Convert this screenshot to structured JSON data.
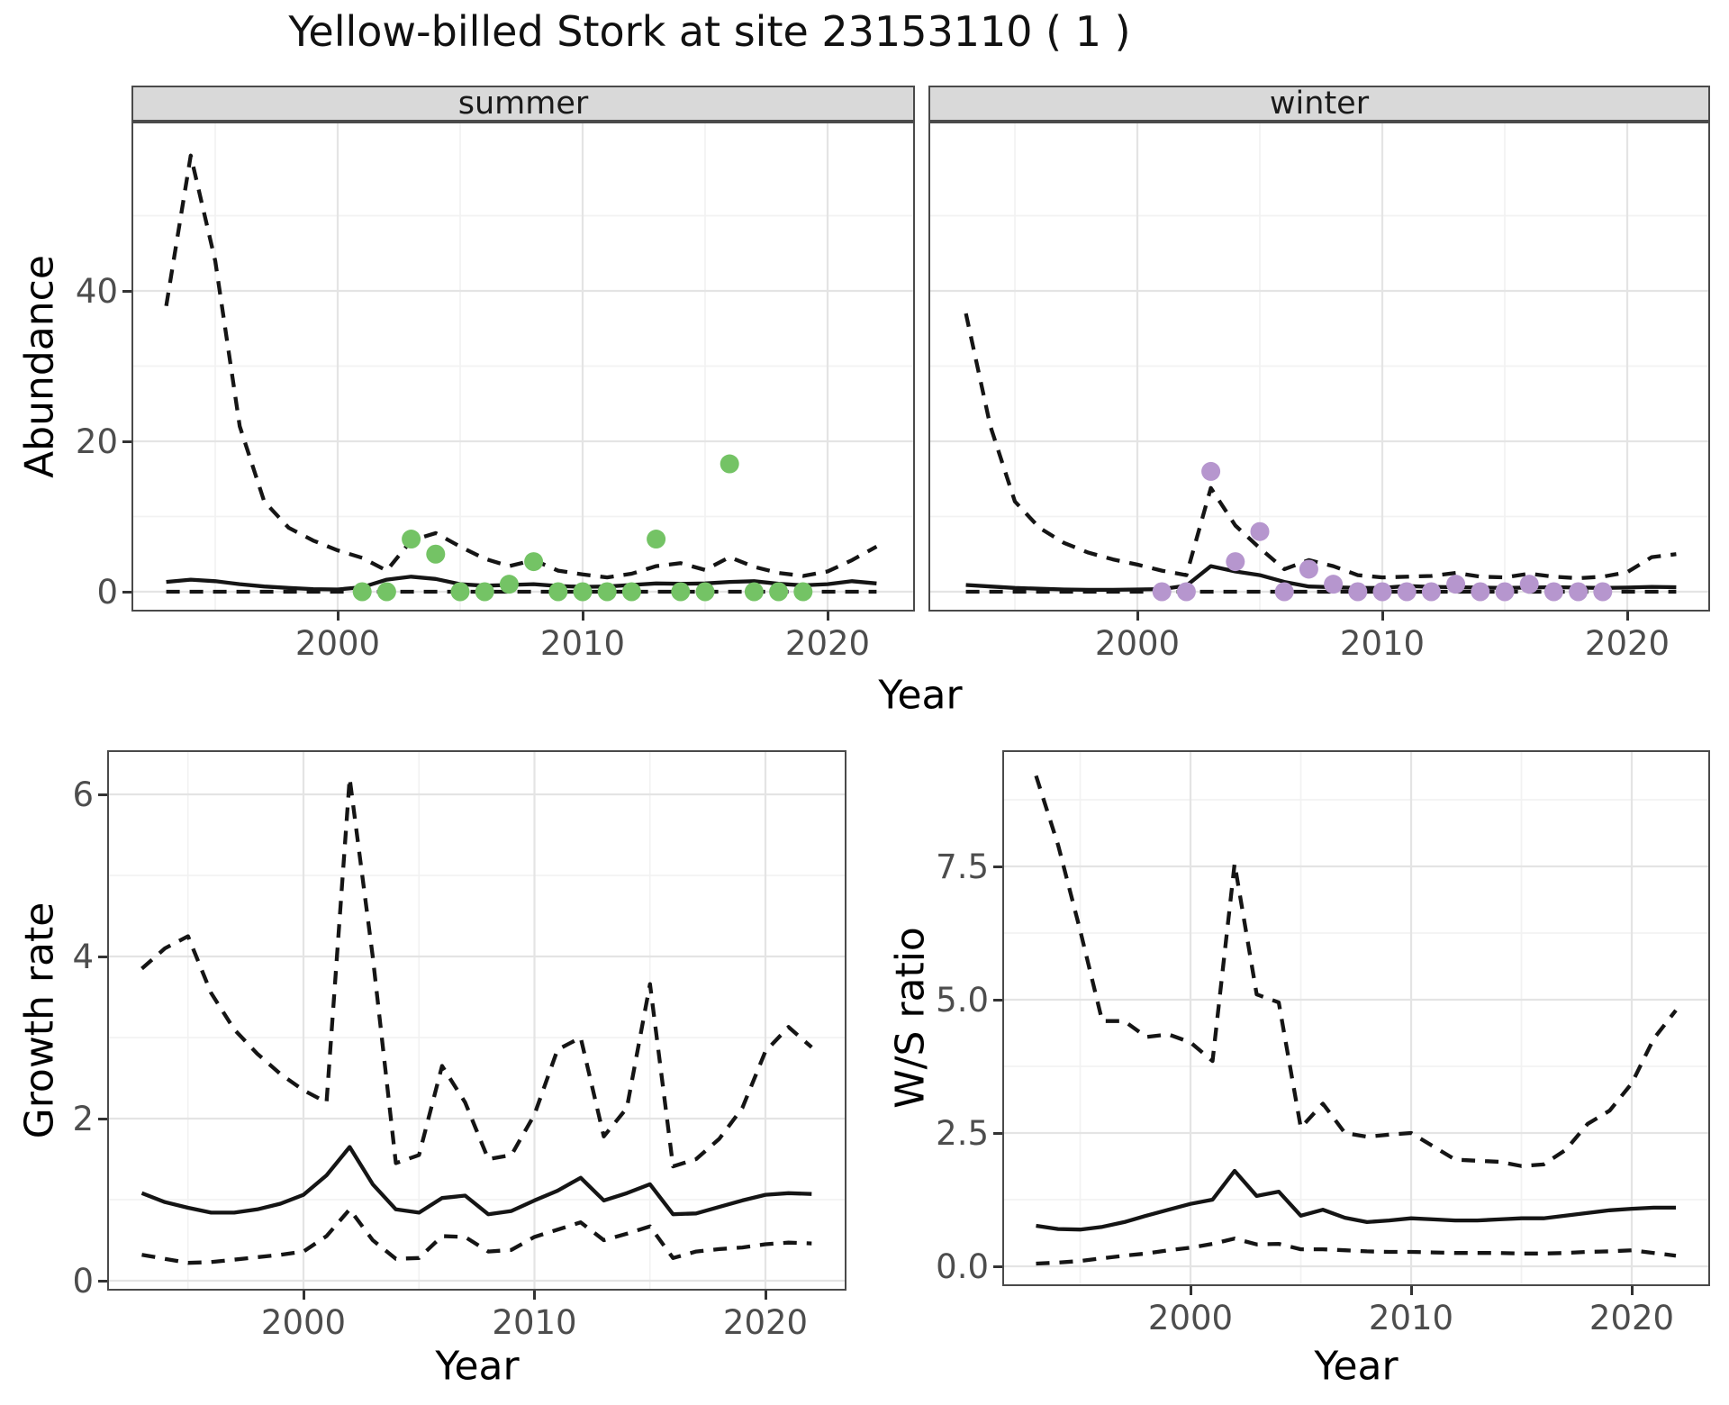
{
  "title": "Yellow-billed Stork at site 23153110 ( 1 )",
  "labels": {
    "abundance": "Abundance",
    "year": "Year",
    "growth_rate": "Growth rate",
    "ws_ratio": "W/S ratio"
  },
  "colors": {
    "summer_point": "#74C365",
    "winter_point": "#B696CE",
    "line": "#151515",
    "grid_major": "#E4E4E4",
    "grid_minor": "#F2F2F2",
    "strip_bg": "#D9D9D9",
    "tick_text": "#4D4D4D",
    "tick_mark": "#333333"
  },
  "chart_data": [
    {
      "id": "summer",
      "type": "line",
      "facet_label": "summer",
      "xlabel": "Year",
      "ylabel": "Abundance",
      "xlim": [
        1991.6,
        2023.5
      ],
      "ylim": [
        -2.4,
        62.3
      ],
      "x_ticks": [
        2000,
        2010,
        2020
      ],
      "x_minor": [
        1995,
        2005,
        2015
      ],
      "y_ticks": [
        0,
        20,
        40
      ],
      "y_tick_labels": [
        "0",
        "20",
        "40"
      ],
      "y_minor": [
        10,
        30,
        50
      ],
      "legend": "none",
      "series": {
        "mean": {
          "x": [
            1993,
            1994,
            1995,
            1996,
            1997,
            1998,
            1999,
            2000,
            2001,
            2002,
            2003,
            2004,
            2005,
            2006,
            2007,
            2008,
            2009,
            2010,
            2011,
            2012,
            2013,
            2014,
            2015,
            2016,
            2017,
            2018,
            2019,
            2020,
            2021,
            2022
          ],
          "y": [
            1.3,
            1.6,
            1.4,
            1.0,
            0.7,
            0.5,
            0.35,
            0.3,
            0.6,
            1.6,
            2.0,
            1.7,
            1.0,
            0.8,
            0.9,
            1.0,
            0.75,
            0.65,
            0.7,
            0.9,
            1.1,
            1.05,
            1.1,
            1.3,
            1.4,
            1.05,
            0.85,
            1.0,
            1.4,
            1.1
          ]
        },
        "upper": {
          "x": [
            1993,
            1994,
            1995,
            1996,
            1997,
            1998,
            1999,
            2000,
            2001,
            2002,
            2003,
            2004,
            2005,
            2006,
            2007,
            2008,
            2009,
            2010,
            2011,
            2012,
            2013,
            2014,
            2015,
            2016,
            2017,
            2018,
            2019,
            2020,
            2021,
            2022
          ],
          "y": [
            38,
            58,
            44,
            22,
            12,
            8.5,
            6.8,
            5.5,
            4.5,
            2.8,
            6.8,
            7.8,
            6.0,
            4.4,
            3.4,
            4.2,
            2.8,
            2.3,
            1.9,
            2.4,
            3.4,
            3.8,
            2.9,
            4.6,
            3.3,
            2.5,
            2.1,
            2.7,
            4.2,
            6.0
          ]
        },
        "lower": {
          "x": [
            1993,
            1994,
            1995,
            1996,
            1997,
            1998,
            1999,
            2000,
            2001,
            2002,
            2003,
            2004,
            2005,
            2006,
            2007,
            2008,
            2009,
            2010,
            2011,
            2012,
            2013,
            2014,
            2015,
            2016,
            2017,
            2018,
            2019,
            2020,
            2021,
            2022
          ],
          "y": [
            0,
            0,
            0,
            0,
            0,
            0,
            0,
            0,
            0,
            0,
            0,
            0,
            0,
            0,
            0,
            0,
            0,
            0,
            0,
            0,
            0,
            0,
            0,
            0,
            0,
            0,
            0,
            0,
            0,
            0
          ]
        }
      },
      "points": {
        "x": [
          2001,
          2002,
          2003,
          2004,
          2005,
          2006,
          2007,
          2008,
          2009,
          2010,
          2011,
          2012,
          2013,
          2014,
          2015,
          2016,
          2017,
          2018,
          2019
        ],
        "y": [
          0,
          0,
          7,
          5,
          0,
          0,
          1,
          4,
          0,
          0,
          0,
          0,
          7,
          0,
          0,
          17,
          0,
          0,
          0
        ]
      }
    },
    {
      "id": "winter",
      "type": "line",
      "facet_label": "winter",
      "xlabel": "Year",
      "ylabel": "Abundance",
      "xlim": [
        1991.5,
        2023.3
      ],
      "ylim": [
        -2.4,
        62.3
      ],
      "x_ticks": [
        2000,
        2010,
        2020
      ],
      "x_minor": [
        1995,
        2005,
        2015
      ],
      "y_ticks": [
        0,
        20,
        40
      ],
      "y_tick_labels": [
        "",
        "",
        ""
      ],
      "y_minor": [
        10,
        30,
        50
      ],
      "legend": "none",
      "series": {
        "mean": {
          "x": [
            1993,
            1994,
            1995,
            1996,
            1997,
            1998,
            1999,
            2000,
            2001,
            2002,
            2003,
            2004,
            2005,
            2006,
            2007,
            2008,
            2009,
            2010,
            2011,
            2012,
            2013,
            2014,
            2015,
            2016,
            2017,
            2018,
            2019,
            2020,
            2021,
            2022
          ],
          "y": [
            0.9,
            0.7,
            0.5,
            0.4,
            0.3,
            0.25,
            0.25,
            0.3,
            0.35,
            0.8,
            3.4,
            2.7,
            2.2,
            1.3,
            0.7,
            0.6,
            0.5,
            0.5,
            0.75,
            0.65,
            0.6,
            0.55,
            0.5,
            0.55,
            0.6,
            0.55,
            0.5,
            0.55,
            0.65,
            0.6
          ]
        },
        "upper": {
          "x": [
            1993,
            1994,
            1995,
            1996,
            1997,
            1998,
            1999,
            2000,
            2001,
            2002,
            2003,
            2004,
            2005,
            2006,
            2007,
            2008,
            2009,
            2010,
            2011,
            2012,
            2013,
            2014,
            2015,
            2016,
            2017,
            2018,
            2019,
            2020,
            2021,
            2022
          ],
          "y": [
            37,
            22,
            12,
            8.5,
            6.5,
            5.2,
            4.3,
            3.6,
            2.8,
            2.2,
            13.8,
            8.8,
            5.8,
            3.0,
            4.2,
            3.4,
            2.2,
            1.9,
            2.0,
            2.1,
            2.5,
            2.0,
            1.9,
            2.4,
            2.0,
            1.8,
            2.0,
            2.6,
            4.6,
            5.0
          ]
        },
        "lower": {
          "x": [
            1993,
            1994,
            1995,
            1996,
            1997,
            1998,
            1999,
            2000,
            2001,
            2002,
            2003,
            2004,
            2005,
            2006,
            2007,
            2008,
            2009,
            2010,
            2011,
            2012,
            2013,
            2014,
            2015,
            2016,
            2017,
            2018,
            2019,
            2020,
            2021,
            2022
          ],
          "y": [
            0,
            0,
            0,
            0,
            0,
            0,
            0,
            0,
            0,
            0,
            0,
            0,
            0,
            0,
            0,
            0,
            0,
            0,
            0,
            0,
            0,
            0,
            0,
            0,
            0,
            0,
            0,
            0,
            0,
            0
          ]
        }
      },
      "points": {
        "x": [
          2001,
          2002,
          2003,
          2004,
          2005,
          2006,
          2007,
          2008,
          2009,
          2010,
          2011,
          2012,
          2013,
          2014,
          2015,
          2016,
          2017,
          2018,
          2019
        ],
        "y": [
          0,
          0,
          16,
          4,
          8,
          0,
          3,
          1,
          0,
          0,
          0,
          0,
          1,
          0,
          0,
          1,
          0,
          0,
          0
        ]
      }
    },
    {
      "id": "growth",
      "type": "line",
      "facet_label": "",
      "xlabel": "Year",
      "ylabel": "Growth rate",
      "xlim": [
        1991.6,
        2023.4
      ],
      "ylim": [
        -0.1,
        6.52
      ],
      "x_ticks": [
        2000,
        2010,
        2020
      ],
      "x_minor": [
        1995,
        2005,
        2015
      ],
      "y_ticks": [
        0,
        2,
        4,
        6
      ],
      "y_tick_labels": [
        "0",
        "2",
        "4",
        "6"
      ],
      "y_minor": [
        1,
        3,
        5
      ],
      "legend": "none",
      "series": {
        "mean": {
          "x": [
            1993,
            1994,
            1995,
            1996,
            1997,
            1998,
            1999,
            2000,
            2001,
            2002,
            2003,
            2004,
            2005,
            2006,
            2007,
            2008,
            2009,
            2010,
            2011,
            2012,
            2013,
            2014,
            2015,
            2016,
            2017,
            2018,
            2019,
            2020,
            2021,
            2022
          ],
          "y": [
            1.08,
            0.97,
            0.9,
            0.84,
            0.84,
            0.88,
            0.95,
            1.06,
            1.3,
            1.65,
            1.19,
            0.88,
            0.84,
            1.02,
            1.05,
            0.82,
            0.86,
            0.99,
            1.11,
            1.27,
            0.99,
            1.08,
            1.19,
            0.82,
            0.83,
            0.91,
            0.99,
            1.06,
            1.08,
            1.07
          ]
        },
        "upper": {
          "x": [
            1993,
            1994,
            1995,
            1996,
            1997,
            1998,
            1999,
            2000,
            2001,
            2002,
            2003,
            2004,
            2005,
            2006,
            2007,
            2008,
            2009,
            2010,
            2011,
            2012,
            2013,
            2014,
            2015,
            2016,
            2017,
            2018,
            2019,
            2020,
            2021,
            2022
          ],
          "y": [
            3.85,
            4.1,
            4.25,
            3.55,
            3.1,
            2.8,
            2.55,
            2.35,
            2.2,
            6.2,
            4.0,
            1.45,
            1.55,
            2.65,
            2.2,
            1.5,
            1.55,
            2.05,
            2.85,
            3.0,
            1.78,
            2.13,
            3.66,
            1.41,
            1.5,
            1.75,
            2.13,
            2.83,
            3.13,
            2.88
          ]
        },
        "lower": {
          "x": [
            1993,
            1994,
            1995,
            1996,
            1997,
            1998,
            1999,
            2000,
            2001,
            2002,
            2003,
            2004,
            2005,
            2006,
            2007,
            2008,
            2009,
            2010,
            2011,
            2012,
            2013,
            2014,
            2015,
            2016,
            2017,
            2018,
            2019,
            2020,
            2021,
            2022
          ],
          "y": [
            0.32,
            0.27,
            0.22,
            0.23,
            0.26,
            0.29,
            0.32,
            0.36,
            0.55,
            0.88,
            0.5,
            0.27,
            0.28,
            0.55,
            0.54,
            0.36,
            0.38,
            0.54,
            0.63,
            0.72,
            0.5,
            0.58,
            0.67,
            0.28,
            0.36,
            0.39,
            0.41,
            0.45,
            0.47,
            0.46
          ]
        }
      },
      "points": {
        "x": [],
        "y": []
      }
    },
    {
      "id": "ws",
      "type": "line",
      "facet_label": "",
      "xlabel": "Year",
      "ylabel": "W/S ratio",
      "xlim": [
        1991.55,
        2023.5
      ],
      "ylim": [
        -0.34,
        9.65
      ],
      "x_ticks": [
        2000,
        2010,
        2020
      ],
      "x_minor": [
        1995,
        2005,
        2015
      ],
      "y_ticks": [
        0,
        2.5,
        5.0,
        7.5
      ],
      "y_tick_labels": [
        "0.0",
        "2.5",
        "5.0",
        "7.5"
      ],
      "y_minor": [
        1.25,
        3.75,
        6.25,
        8.75
      ],
      "legend": "none",
      "series": {
        "mean": {
          "x": [
            1993,
            1994,
            1995,
            1996,
            1997,
            1998,
            1999,
            2000,
            2001,
            2002,
            2003,
            2004,
            2005,
            2006,
            2007,
            2008,
            2009,
            2010,
            2011,
            2012,
            2013,
            2014,
            2015,
            2016,
            2017,
            2018,
            2019,
            2020,
            2021,
            2022
          ],
          "y": [
            0.76,
            0.7,
            0.69,
            0.74,
            0.83,
            0.95,
            1.06,
            1.17,
            1.25,
            1.79,
            1.32,
            1.4,
            0.95,
            1.06,
            0.91,
            0.83,
            0.86,
            0.9,
            0.88,
            0.86,
            0.86,
            0.88,
            0.9,
            0.9,
            0.95,
            1.0,
            1.05,
            1.08,
            1.1,
            1.1
          ]
        },
        "upper": {
          "x": [
            1993,
            1994,
            1995,
            1996,
            1997,
            1998,
            1999,
            2000,
            2001,
            2002,
            2003,
            2004,
            2005,
            2006,
            2007,
            2008,
            2009,
            2010,
            2011,
            2012,
            2013,
            2014,
            2015,
            2016,
            2017,
            2018,
            2019,
            2020,
            2021,
            2022
          ],
          "y": [
            9.2,
            7.9,
            6.3,
            4.6,
            4.6,
            4.3,
            4.35,
            4.2,
            3.85,
            7.55,
            5.1,
            4.95,
            2.6,
            3.05,
            2.5,
            2.43,
            2.47,
            2.5,
            2.25,
            2.0,
            1.98,
            1.96,
            1.88,
            1.91,
            2.18,
            2.67,
            2.92,
            3.43,
            4.27,
            4.8
          ]
        },
        "lower": {
          "x": [
            1993,
            1994,
            1995,
            1996,
            1997,
            1998,
            1999,
            2000,
            2001,
            2002,
            2003,
            2004,
            2005,
            2006,
            2007,
            2008,
            2009,
            2010,
            2011,
            2012,
            2013,
            2014,
            2015,
            2016,
            2017,
            2018,
            2019,
            2020,
            2021,
            2022
          ],
          "y": [
            0.05,
            0.07,
            0.1,
            0.15,
            0.2,
            0.24,
            0.3,
            0.35,
            0.42,
            0.52,
            0.41,
            0.42,
            0.32,
            0.32,
            0.3,
            0.28,
            0.27,
            0.27,
            0.26,
            0.25,
            0.25,
            0.25,
            0.24,
            0.24,
            0.25,
            0.27,
            0.28,
            0.3,
            0.25,
            0.2
          ]
        }
      },
      "points": {
        "x": [],
        "y": []
      }
    }
  ]
}
